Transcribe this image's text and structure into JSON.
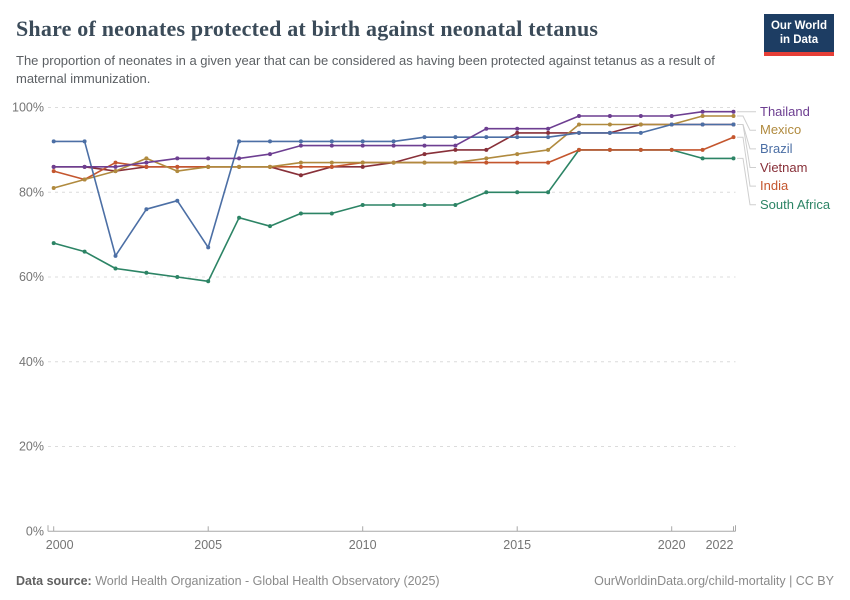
{
  "header": {
    "title": "Share of neonates protected at birth against neonatal tetanus",
    "subtitle": "The proportion of neonates in a given year that can be considered as having been protected against tetanus as a result of maternal immunization.",
    "logo_line1": "Our World",
    "logo_line2": "in Data"
  },
  "footer": {
    "source_label": "Data source:",
    "source_text": " World Health Organization - Global Health Observatory (2025)",
    "right_text": "OurWorldinData.org/child-mortality | CC BY"
  },
  "chart_data": {
    "type": "line",
    "title": "Share of neonates protected at birth against neonatal tetanus",
    "x": [
      2000,
      2001,
      2002,
      2003,
      2004,
      2005,
      2006,
      2007,
      2008,
      2009,
      2010,
      2011,
      2012,
      2013,
      2014,
      2015,
      2016,
      2017,
      2018,
      2019,
      2020,
      2021,
      2022
    ],
    "x_ticks": [
      2000,
      2005,
      2010,
      2015,
      2020,
      2022
    ],
    "y_ticks": [
      0,
      20,
      40,
      60,
      80,
      100
    ],
    "y_tick_suffix": "%",
    "ylim": [
      0,
      100
    ],
    "xlim": [
      2000,
      2022
    ],
    "grid": "horizontal-dashed",
    "legend_position": "right",
    "series": [
      {
        "name": "Thailand",
        "color": "#6D3E91",
        "values": [
          86,
          86,
          86,
          87,
          88,
          88,
          88,
          89,
          91,
          91,
          91,
          91,
          91,
          91,
          95,
          95,
          95,
          98,
          98,
          98,
          98,
          99,
          99
        ]
      },
      {
        "name": "Mexico",
        "color": "#B08A3E",
        "values": [
          81,
          83,
          85,
          88,
          85,
          86,
          86,
          86,
          87,
          87,
          87,
          87,
          87,
          87,
          88,
          89,
          90,
          96,
          96,
          96,
          96,
          98,
          98
        ]
      },
      {
        "name": "Brazil",
        "color": "#4C6FA5",
        "values": [
          92,
          92,
          65,
          76,
          78,
          67,
          92,
          92,
          92,
          92,
          92,
          92,
          93,
          93,
          93,
          93,
          93,
          94,
          94,
          94,
          96,
          96,
          96
        ]
      },
      {
        "name": "Vietnam",
        "color": "#883039",
        "values": [
          86,
          86,
          85,
          86,
          86,
          86,
          86,
          86,
          84,
          86,
          86,
          87,
          89,
          90,
          90,
          94,
          94,
          94,
          94,
          96,
          96,
          96,
          96
        ]
      },
      {
        "name": "India",
        "color": "#C4562E",
        "values": [
          85,
          83,
          87,
          86,
          86,
          86,
          86,
          86,
          86,
          86,
          87,
          87,
          87,
          87,
          87,
          87,
          87,
          90,
          90,
          90,
          90,
          90,
          93
        ]
      },
      {
        "name": "South Africa",
        "color": "#2C8465",
        "values": [
          68,
          66,
          62,
          61,
          60,
          59,
          74,
          72,
          75,
          75,
          77,
          77,
          77,
          77,
          80,
          80,
          80,
          90,
          90,
          90,
          90,
          88,
          88
        ]
      }
    ],
    "draw_order": [
      "Vietnam",
      "South Africa",
      "India",
      "Mexico",
      "Brazil",
      "Thailand"
    ]
  }
}
